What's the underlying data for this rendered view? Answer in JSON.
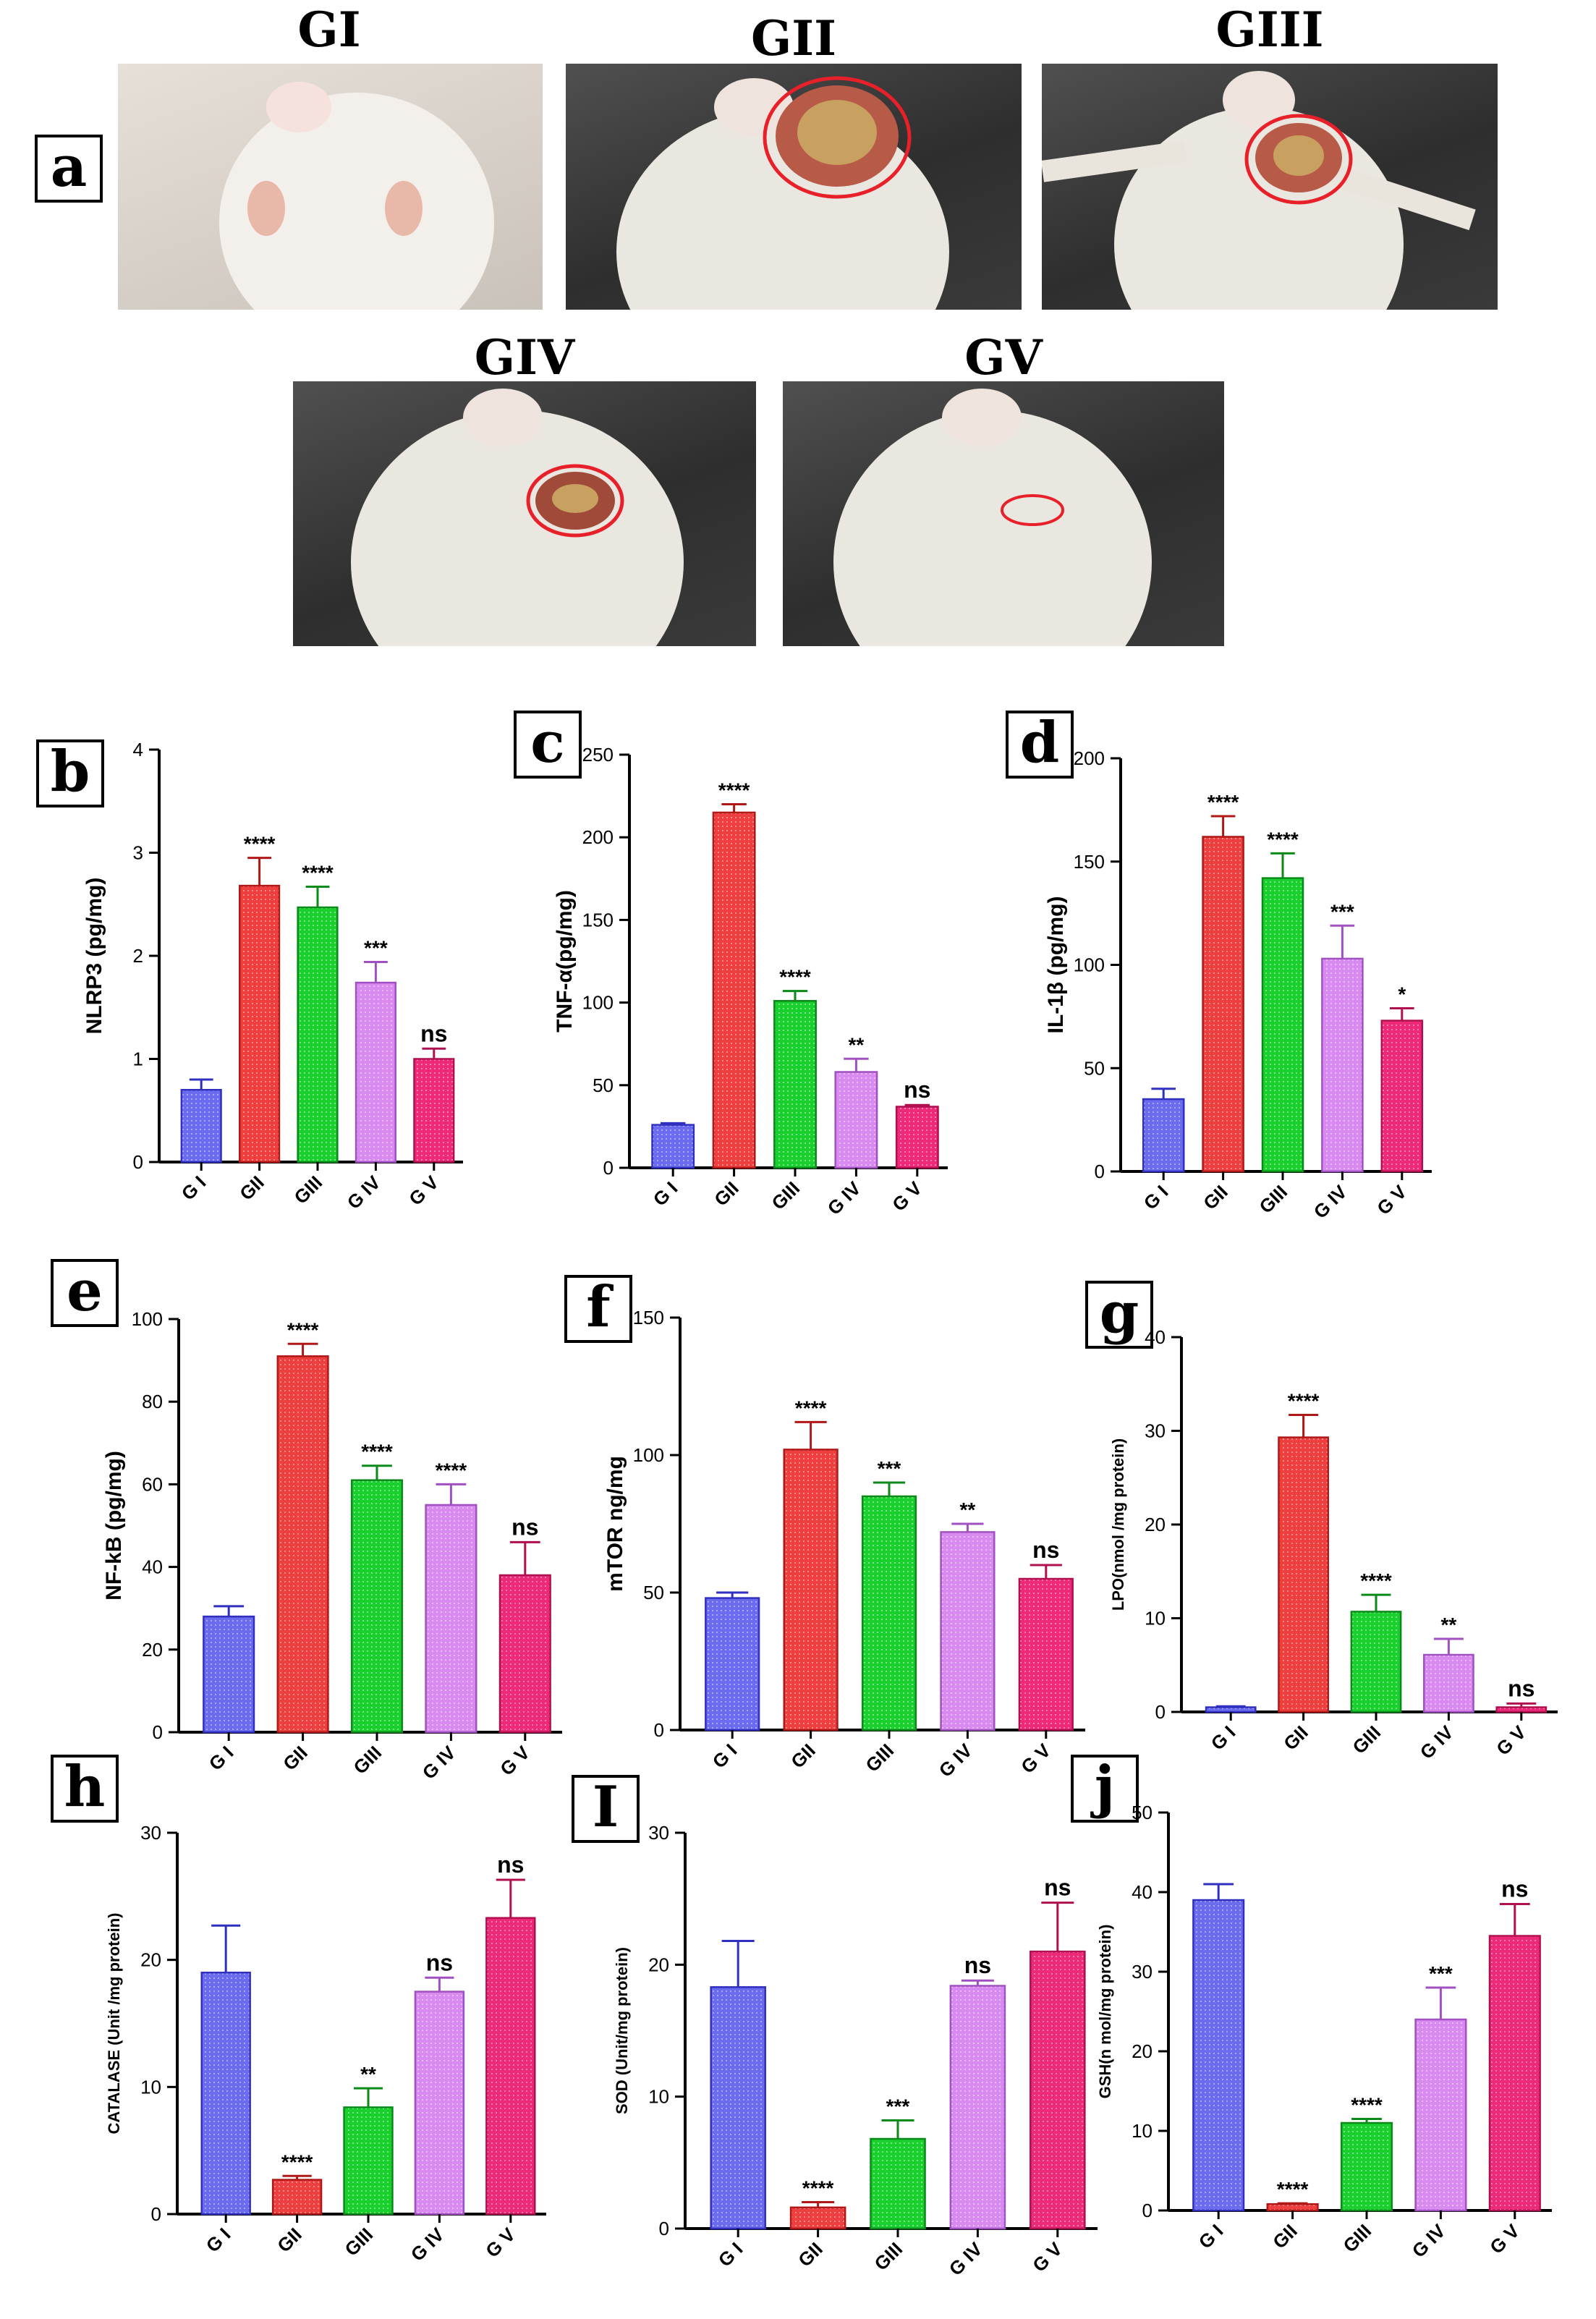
{
  "panel_a": {
    "label": "a",
    "photos": [
      {
        "title": "GI",
        "lesion": "none"
      },
      {
        "title": "GII",
        "lesion": "large"
      },
      {
        "title": "GIII",
        "lesion": "medium"
      },
      {
        "title": "GIV",
        "lesion": "medium-small"
      },
      {
        "title": "GV",
        "lesion": "small"
      }
    ]
  },
  "colors": [
    "#6b6bf0",
    "#ee3e3e",
    "#19d02e",
    "#d88af0",
    "#ee2a78"
  ],
  "chart_data": [
    {
      "id": "b",
      "type": "bar",
      "ylabel": "NLRP3 (pg/mg)",
      "categories": [
        "G I",
        "GII",
        "GIII",
        "G IV",
        "G V"
      ],
      "values": [
        0.7,
        2.68,
        2.47,
        1.74,
        1.0
      ],
      "errors": [
        0.1,
        0.27,
        0.2,
        0.2,
        0.1
      ],
      "sig": [
        "",
        "****",
        "****",
        "***",
        "ns"
      ],
      "ylim": [
        0,
        4
      ],
      "ticks": [
        0,
        1,
        2,
        3,
        4
      ]
    },
    {
      "id": "c",
      "type": "bar",
      "ylabel": "TNF-α(pg/mg)",
      "categories": [
        "G I",
        "GII",
        "GIII",
        "G IV",
        "G V"
      ],
      "values": [
        26,
        215,
        101,
        58,
        37
      ],
      "errors": [
        1,
        5,
        6,
        8,
        1
      ],
      "sig": [
        "",
        "****",
        "****",
        "**",
        "ns"
      ],
      "ylim": [
        0,
        250
      ],
      "ticks": [
        0,
        50,
        100,
        150,
        200,
        250
      ]
    },
    {
      "id": "d",
      "type": "bar",
      "ylabel": "IL-1β (pg/mg)",
      "categories": [
        "G I",
        "GII",
        "GIII",
        "G IV",
        "G V"
      ],
      "values": [
        35,
        162,
        142,
        103,
        73
      ],
      "errors": [
        5,
        10,
        12,
        16,
        6
      ],
      "sig": [
        "",
        "****",
        "****",
        "***",
        "*"
      ],
      "ylim": [
        0,
        200
      ],
      "ticks": [
        0,
        50,
        100,
        150,
        200
      ]
    },
    {
      "id": "e",
      "type": "bar",
      "ylabel": "NF-kB (pg/mg)",
      "categories": [
        "G I",
        "GII",
        "GIII",
        "G IV",
        "G V"
      ],
      "values": [
        28,
        91,
        61,
        55,
        38
      ],
      "errors": [
        2.5,
        3,
        3.5,
        5,
        8
      ],
      "sig": [
        "",
        "****",
        "****",
        "****",
        "ns"
      ],
      "ylim": [
        0,
        100
      ],
      "ticks": [
        0,
        20,
        40,
        60,
        80,
        100
      ]
    },
    {
      "id": "f",
      "type": "bar",
      "ylabel": "mTOR ng/mg",
      "categories": [
        "G I",
        "GII",
        "GIII",
        "G IV",
        "G V"
      ],
      "values": [
        48,
        102,
        85,
        72,
        55
      ],
      "errors": [
        2,
        10,
        5,
        3,
        5
      ],
      "sig": [
        "",
        "****",
        "***",
        "**",
        "ns"
      ],
      "ylim": [
        0,
        150
      ],
      "ticks": [
        0,
        50,
        100,
        150
      ]
    },
    {
      "id": "g",
      "type": "bar",
      "ylabel": "LPO(nmol /mg protein)",
      "categories": [
        "G I",
        "GII",
        "GIII",
        "G IV",
        "G V"
      ],
      "values": [
        0.5,
        29.3,
        10.7,
        6.1,
        0.5
      ],
      "errors": [
        0.1,
        2.4,
        1.8,
        1.7,
        0.4
      ],
      "sig": [
        "",
        "****",
        "****",
        "**",
        "ns"
      ],
      "ylim": [
        0,
        40
      ],
      "ticks": [
        0,
        10,
        20,
        30,
        40
      ]
    },
    {
      "id": "h",
      "type": "bar",
      "ylabel": "CATALASE (Unit /mg protein)",
      "categories": [
        "G I",
        "GII",
        "GIII",
        "G IV",
        "G V"
      ],
      "values": [
        19,
        2.7,
        8.4,
        17.5,
        23.3
      ],
      "errors": [
        3.7,
        0.3,
        1.5,
        1.1,
        3
      ],
      "sig": [
        "",
        "****",
        "**",
        "ns",
        "ns"
      ],
      "ylim": [
        0,
        30
      ],
      "ticks": [
        0,
        10,
        20,
        30
      ]
    },
    {
      "id": "I",
      "type": "bar",
      "ylabel": "SOD (Unit/mg protein)",
      "categories": [
        "G I",
        "GII",
        "GIII",
        "G IV",
        "G V"
      ],
      "values": [
        18.3,
        1.6,
        6.8,
        18.4,
        21
      ],
      "errors": [
        3.5,
        0.4,
        1.4,
        0.4,
        3.7
      ],
      "sig": [
        "",
        "****",
        "***",
        "ns",
        "ns"
      ],
      "ylim": [
        0,
        30
      ],
      "ticks": [
        0,
        10,
        20,
        30
      ]
    },
    {
      "id": "j",
      "type": "bar",
      "ylabel": "GSH(n mol/mg protein)",
      "categories": [
        "G I",
        "GII",
        "GIII",
        "G IV",
        "G V"
      ],
      "values": [
        39,
        0.8,
        11,
        24,
        34.5
      ],
      "errors": [
        2,
        0.1,
        0.5,
        4,
        4
      ],
      "sig": [
        "",
        "****",
        "****",
        "***",
        "ns"
      ],
      "ylim": [
        0,
        50
      ],
      "ticks": [
        0,
        10,
        20,
        30,
        40,
        50
      ]
    }
  ]
}
